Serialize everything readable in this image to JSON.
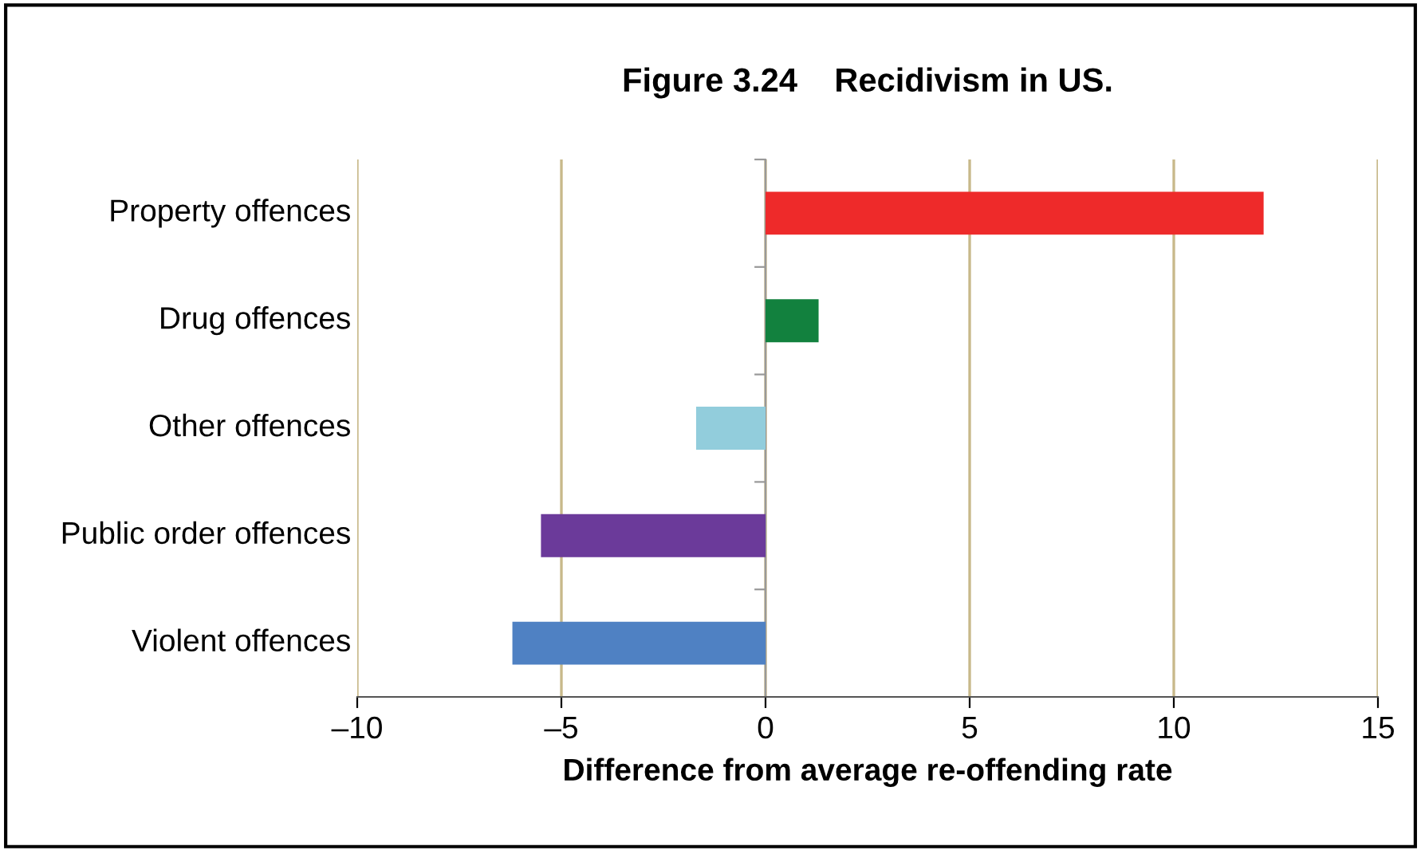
{
  "chart_data": {
    "type": "bar",
    "orientation": "horizontal",
    "title": "Figure 3.24    Recidivism in US.",
    "xlabel": "Difference from average re-offending rate",
    "categories": [
      "Property offences",
      "Drug offences",
      "Other offences",
      "Public order offences",
      "Violent offences"
    ],
    "values": [
      12.2,
      1.3,
      -1.7,
      -5.5,
      -6.2
    ],
    "colors": [
      "#ee2a2a",
      "#12813e",
      "#92cddc",
      "#6b3a9a",
      "#4f81c3"
    ],
    "xlim": [
      -10,
      15
    ],
    "xticks": [
      {
        "value": -10,
        "label": "–10"
      },
      {
        "value": -5,
        "label": "–5"
      },
      0,
      5,
      10,
      15
    ],
    "grid": "x"
  }
}
